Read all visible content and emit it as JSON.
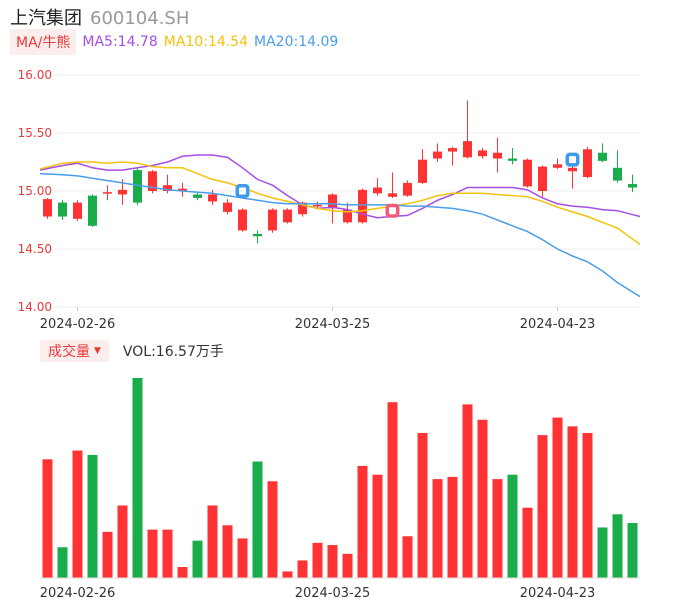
{
  "header": {
    "name": "上汽集团",
    "code": "600104.SH"
  },
  "ma_bar": {
    "toggle_label": "MA/牛熊",
    "ma5": "MA5:14.78",
    "ma10": "MA10:14.54",
    "ma20": "MA20:14.09"
  },
  "volume_bar": {
    "toggle_label": "成交量",
    "caret": "▼",
    "value_text": "VOL:16.57万手"
  },
  "colors": {
    "up": "#ff3333",
    "down": "#1aab4a",
    "ma5": "#a64ee6",
    "ma10": "#f5c20c",
    "ma20": "#4a9ee8",
    "axis_label": "#e83a3a"
  },
  "chart_data": [
    {
      "type": "candlestick",
      "yticks": [
        "16.00",
        "15.50",
        "15.00",
        "14.50",
        "14.00"
      ],
      "ylim": [
        14.0,
        16.0
      ],
      "xlabels": [
        {
          "label": "2024-02-26",
          "index": 2
        },
        {
          "label": "2024-03-25",
          "index": 19
        },
        {
          "label": "2024-04-23",
          "index": 34
        }
      ],
      "candles": [
        {
          "o": 14.78,
          "c": 14.93,
          "h": 14.94,
          "l": 14.76
        },
        {
          "o": 14.9,
          "c": 14.78,
          "h": 14.92,
          "l": 14.75
        },
        {
          "o": 14.76,
          "c": 14.9,
          "h": 14.92,
          "l": 14.74
        },
        {
          "o": 14.96,
          "c": 14.7,
          "h": 14.97,
          "l": 14.69
        },
        {
          "o": 14.98,
          "c": 14.99,
          "h": 15.05,
          "l": 14.92
        },
        {
          "o": 14.97,
          "c": 15.01,
          "h": 15.1,
          "l": 14.88
        },
        {
          "o": 15.18,
          "c": 14.9,
          "h": 15.2,
          "l": 14.88
        },
        {
          "o": 15.0,
          "c": 15.17,
          "h": 15.18,
          "l": 14.98
        },
        {
          "o": 15.0,
          "c": 15.05,
          "h": 15.14,
          "l": 14.98
        },
        {
          "o": 15.0,
          "c": 15.02,
          "h": 15.07,
          "l": 14.95
        },
        {
          "o": 14.97,
          "c": 14.94,
          "h": 14.99,
          "l": 14.92
        },
        {
          "o": 14.91,
          "c": 14.97,
          "h": 15.01,
          "l": 14.88
        },
        {
          "o": 14.82,
          "c": 14.9,
          "h": 14.93,
          "l": 14.8
        },
        {
          "o": 14.66,
          "c": 14.84,
          "h": 14.85,
          "l": 14.65
        },
        {
          "o": 14.63,
          "c": 14.61,
          "h": 14.66,
          "l": 14.55
        },
        {
          "o": 14.66,
          "c": 14.84,
          "h": 14.85,
          "l": 14.64
        },
        {
          "o": 14.73,
          "c": 14.84,
          "h": 14.85,
          "l": 14.72
        },
        {
          "o": 14.8,
          "c": 14.9,
          "h": 14.91,
          "l": 14.78
        },
        {
          "o": 14.87,
          "c": 14.88,
          "h": 14.91,
          "l": 14.84
        },
        {
          "o": 14.85,
          "c": 14.97,
          "h": 14.98,
          "l": 14.72
        },
        {
          "o": 14.73,
          "c": 14.84,
          "h": 14.9,
          "l": 14.72
        },
        {
          "o": 14.73,
          "c": 15.01,
          "h": 15.02,
          "l": 14.72
        },
        {
          "o": 14.98,
          "c": 15.03,
          "h": 15.11,
          "l": 14.96
        },
        {
          "o": 14.95,
          "c": 14.98,
          "h": 15.16,
          "l": 14.94
        },
        {
          "o": 14.96,
          "c": 15.07,
          "h": 15.09,
          "l": 14.95
        },
        {
          "o": 15.07,
          "c": 15.27,
          "h": 15.36,
          "l": 15.06
        },
        {
          "o": 15.28,
          "c": 15.34,
          "h": 15.41,
          "l": 15.25
        },
        {
          "o": 15.34,
          "c": 15.37,
          "h": 15.38,
          "l": 15.22
        },
        {
          "o": 15.29,
          "c": 15.43,
          "h": 15.78,
          "l": 15.28
        },
        {
          "o": 15.3,
          "c": 15.35,
          "h": 15.37,
          "l": 15.28
        },
        {
          "o": 15.28,
          "c": 15.33,
          "h": 15.46,
          "l": 15.16
        },
        {
          "o": 15.28,
          "c": 15.26,
          "h": 15.37,
          "l": 15.23
        },
        {
          "o": 15.04,
          "c": 15.27,
          "h": 15.28,
          "l": 15.03
        },
        {
          "o": 15.0,
          "c": 15.21,
          "h": 15.22,
          "l": 14.95
        },
        {
          "o": 15.2,
          "c": 15.23,
          "h": 15.28,
          "l": 15.19
        },
        {
          "o": 15.17,
          "c": 15.2,
          "h": 15.3,
          "l": 15.02
        },
        {
          "o": 15.12,
          "c": 15.36,
          "h": 15.38,
          "l": 15.11
        },
        {
          "o": 15.33,
          "c": 15.26,
          "h": 15.41,
          "l": 15.25
        },
        {
          "o": 15.2,
          "c": 15.09,
          "h": 15.35,
          "l": 15.07
        },
        {
          "o": 15.06,
          "c": 15.03,
          "h": 15.14,
          "l": 14.99
        }
      ],
      "ma5": [
        15.18,
        15.22,
        15.24,
        15.2,
        15.18,
        15.18,
        15.2,
        15.22,
        15.25,
        15.3,
        15.31,
        15.31,
        15.29,
        15.2,
        15.1,
        15.05,
        14.96,
        14.88,
        14.85,
        14.86,
        14.84,
        14.8,
        14.77,
        14.78,
        14.79,
        14.85,
        14.92,
        14.97,
        15.03,
        15.03,
        15.03,
        15.03,
        15.01,
        14.94,
        14.89,
        14.87,
        14.86,
        14.84,
        14.83,
        14.78
      ],
      "ma10": [
        15.19,
        15.24,
        15.25,
        15.25,
        15.24,
        15.25,
        15.24,
        15.21,
        15.2,
        15.2,
        15.15,
        15.1,
        15.07,
        15.03,
        14.98,
        14.94,
        14.91,
        14.88,
        14.85,
        14.83,
        14.82,
        14.83,
        14.85,
        14.87,
        14.89,
        14.92,
        14.96,
        14.98,
        14.98,
        14.98,
        14.97,
        14.96,
        14.95,
        14.91,
        14.86,
        14.82,
        14.78,
        14.73,
        14.68,
        14.54
      ],
      "ma20": [
        15.15,
        15.14,
        15.13,
        15.11,
        15.09,
        15.07,
        15.05,
        15.03,
        15.01,
        15.0,
        14.99,
        14.98,
        14.96,
        14.94,
        14.92,
        14.9,
        14.89,
        14.89,
        14.89,
        14.89,
        14.88,
        14.88,
        14.88,
        14.88,
        14.87,
        14.87,
        14.86,
        14.85,
        14.83,
        14.8,
        14.75,
        14.7,
        14.65,
        14.58,
        14.5,
        14.44,
        14.39,
        14.31,
        14.21,
        14.09
      ]
    },
    {
      "type": "bar",
      "name": "成交量",
      "volumes": [
        54,
        14,
        58,
        56,
        21,
        33,
        91,
        22,
        22,
        5,
        17,
        33,
        24,
        18,
        53,
        44,
        3,
        8,
        16,
        15,
        11,
        51,
        47,
        80,
        19,
        66,
        45,
        46,
        79,
        72,
        45,
        47,
        32,
        65,
        73,
        69,
        66,
        23,
        29,
        25
      ],
      "ylim": [
        0,
        91
      ],
      "xlabels": [
        {
          "label": "2024-02-26",
          "index": 2
        },
        {
          "label": "2024-03-25",
          "index": 19
        },
        {
          "label": "2024-04-23",
          "index": 34
        }
      ]
    }
  ]
}
